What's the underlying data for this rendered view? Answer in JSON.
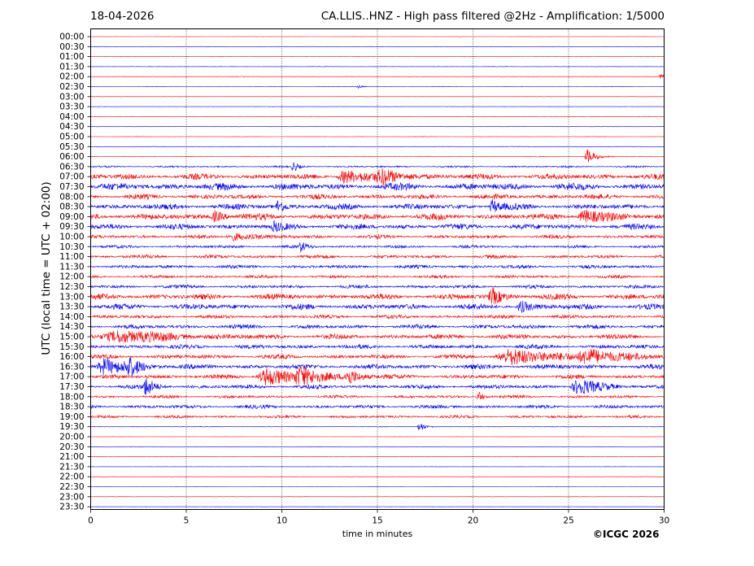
{
  "header": {
    "date": "18-04-2026",
    "title": "CA.LLIS..HNZ - High pass filtered @2Hz - Amplification: 1/5000"
  },
  "footer": {
    "copyright": "©ICGC 2026"
  },
  "chart_data": {
    "type": "line",
    "xlabel": "time in minutes",
    "ylabel": "UTC (local time = UTC + 02:00)",
    "xlim": [
      0,
      30
    ],
    "x_ticks": [
      "0",
      "5",
      "10",
      "15",
      "20",
      "25",
      "30"
    ],
    "grid": "vertical dotted lines at each x tick",
    "colors": {
      "even_rows": "#ff0000",
      "odd_rows": "#0000ff"
    },
    "rows": [
      "00:00",
      "00:30",
      "01:00",
      "01:30",
      "02:00",
      "02:30",
      "03:00",
      "03:30",
      "04:00",
      "04:30",
      "05:00",
      "05:30",
      "06:00",
      "06:30",
      "07:00",
      "07:30",
      "08:00",
      "08:30",
      "09:00",
      "09:30",
      "10:00",
      "10:30",
      "11:00",
      "11:30",
      "12:00",
      "12:30",
      "13:00",
      "13:30",
      "14:00",
      "14:30",
      "15:00",
      "15:30",
      "16:00",
      "16:30",
      "17:00",
      "17:30",
      "18:00",
      "18:30",
      "19:00",
      "19:30",
      "20:00",
      "20:30",
      "21:00",
      "21:30",
      "22:00",
      "22:30",
      "23:00",
      "23:30"
    ],
    "noise_level": [
      0.2,
      0.2,
      0.2,
      0.3,
      0.3,
      0.3,
      0.2,
      0.2,
      0.2,
      0.2,
      0.3,
      0.3,
      0.4,
      1.2,
      4.0,
      5.0,
      3.5,
      4.0,
      4.5,
      4.0,
      2.5,
      2.0,
      2.5,
      2.5,
      2.0,
      2.5,
      4.0,
      4.0,
      2.5,
      3.0,
      3.5,
      3.0,
      3.0,
      3.5,
      3.0,
      3.0,
      2.0,
      2.5,
      2.0,
      0.4,
      0.2,
      0.2,
      0.2,
      0.2,
      0.2,
      0.2,
      0.2,
      0.2
    ],
    "events": [
      {
        "row": 4,
        "minute": 29.8,
        "amp": 4,
        "dur": 0.3
      },
      {
        "row": 5,
        "minute": 14.0,
        "amp": 3,
        "dur": 0.3
      },
      {
        "row": 12,
        "minute": 26.0,
        "amp": 10,
        "dur": 0.6
      },
      {
        "row": 13,
        "minute": 10.6,
        "amp": 7,
        "dur": 0.4
      },
      {
        "row": 14,
        "minute": 13.3,
        "amp": 9,
        "dur": 1.5
      },
      {
        "row": 14,
        "minute": 15.3,
        "amp": 8,
        "dur": 1.5
      },
      {
        "row": 17,
        "minute": 9.8,
        "amp": 8,
        "dur": 0.5
      },
      {
        "row": 17,
        "minute": 21.0,
        "amp": 9,
        "dur": 0.6
      },
      {
        "row": 18,
        "minute": 6.5,
        "amp": 7,
        "dur": 0.8
      },
      {
        "row": 18,
        "minute": 25.8,
        "amp": 9,
        "dur": 1.2
      },
      {
        "row": 19,
        "minute": 9.6,
        "amp": 6,
        "dur": 0.5
      },
      {
        "row": 20,
        "minute": 7.5,
        "amp": 5,
        "dur": 1.5
      },
      {
        "row": 21,
        "minute": 11.0,
        "amp": 6,
        "dur": 0.5
      },
      {
        "row": 26,
        "minute": 21.0,
        "amp": 10,
        "dur": 0.8
      },
      {
        "row": 27,
        "minute": 22.5,
        "amp": 7,
        "dur": 0.8
      },
      {
        "row": 30,
        "minute": 1.5,
        "amp": 8,
        "dur": 3.5
      },
      {
        "row": 32,
        "minute": 22.0,
        "amp": 10,
        "dur": 3.0
      },
      {
        "row": 32,
        "minute": 26.0,
        "amp": 10,
        "dur": 2.2
      },
      {
        "row": 33,
        "minute": 0.7,
        "amp": 10,
        "dur": 1.5
      },
      {
        "row": 33,
        "minute": 2.0,
        "amp": 9,
        "dur": 1.0
      },
      {
        "row": 34,
        "minute": 9.2,
        "amp": 11,
        "dur": 2.0
      },
      {
        "row": 34,
        "minute": 11.0,
        "amp": 11,
        "dur": 1.5
      },
      {
        "row": 34,
        "minute": 13.5,
        "amp": 9,
        "dur": 1.0
      },
      {
        "row": 35,
        "minute": 2.9,
        "amp": 12,
        "dur": 0.6
      },
      {
        "row": 35,
        "minute": 25.5,
        "amp": 10,
        "dur": 1.5
      },
      {
        "row": 36,
        "minute": 20.3,
        "amp": 7,
        "dur": 0.4
      },
      {
        "row": 39,
        "minute": 17.2,
        "amp": 7,
        "dur": 0.4
      }
    ]
  }
}
